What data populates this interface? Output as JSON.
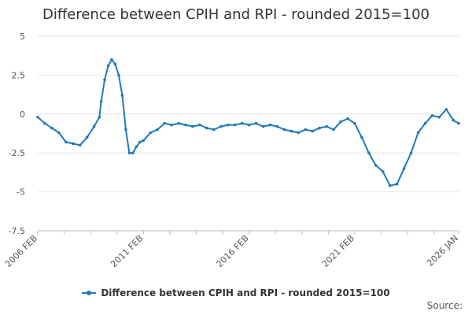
{
  "chart_data": {
    "type": "line",
    "title": "Difference between CPIH and RPI - rounded 2015=100",
    "xlabel": "",
    "ylabel": "",
    "ylim": [
      -7.5,
      5
    ],
    "y_ticks": [
      5,
      2.5,
      0,
      -2.5,
      -5,
      -7.5
    ],
    "y_tick_labels": [
      "5",
      "2.5",
      "0",
      "-2.5",
      "-5",
      "-7.5"
    ],
    "x_ticks": [
      "2006 FEB",
      "2011 FEB",
      "2016 FEB",
      "2021 FEB",
      "2026 JAN"
    ],
    "grid": true,
    "legend_position": "bottom-center",
    "series": [
      {
        "name": "Difference between CPIH and RPI - rounded 2015=100",
        "color": "#1f7bb8",
        "x": [
          "2006-02",
          "2006-06",
          "2006-10",
          "2007-02",
          "2007-06",
          "2007-10",
          "2008-02",
          "2008-06",
          "2008-10",
          "2009-01",
          "2009-02",
          "2009-04",
          "2009-06",
          "2009-08",
          "2009-10",
          "2009-12",
          "2010-02",
          "2010-04",
          "2010-06",
          "2010-08",
          "2010-10",
          "2010-12",
          "2011-02",
          "2011-06",
          "2011-10",
          "2012-02",
          "2012-06",
          "2012-10",
          "2013-02",
          "2013-06",
          "2013-10",
          "2014-02",
          "2014-06",
          "2014-10",
          "2015-02",
          "2015-06",
          "2015-10",
          "2016-02",
          "2016-06",
          "2016-10",
          "2017-02",
          "2017-06",
          "2017-10",
          "2018-02",
          "2018-06",
          "2018-10",
          "2019-02",
          "2019-06",
          "2019-10",
          "2020-02",
          "2020-06",
          "2020-10",
          "2021-02",
          "2021-06",
          "2021-10",
          "2022-02",
          "2022-06",
          "2022-10",
          "2023-02",
          "2023-06",
          "2023-10",
          "2024-02",
          "2024-06",
          "2024-10",
          "2025-02",
          "2025-06",
          "2025-10",
          "2026-01"
        ],
        "values": [
          -0.2,
          -0.6,
          -0.9,
          -1.2,
          -1.8,
          -1.9,
          -2.0,
          -1.5,
          -0.8,
          -0.2,
          0.8,
          2.2,
          3.1,
          3.5,
          3.2,
          2.5,
          1.2,
          -1.0,
          -2.5,
          -2.5,
          -2.1,
          -1.8,
          -1.7,
          -1.2,
          -1.0,
          -0.6,
          -0.7,
          -0.6,
          -0.7,
          -0.8,
          -0.7,
          -0.9,
          -1.0,
          -0.8,
          -0.7,
          -0.7,
          -0.6,
          -0.7,
          -0.6,
          -0.8,
          -0.7,
          -0.8,
          -1.0,
          -1.1,
          -1.2,
          -1.0,
          -1.1,
          -0.9,
          -0.8,
          -1.0,
          -0.5,
          -0.3,
          -0.6,
          -1.5,
          -2.5,
          -3.3,
          -3.7,
          -4.6,
          -4.5,
          -3.5,
          -2.5,
          -1.2,
          -0.6,
          -0.1,
          -0.2,
          0.3,
          -0.4,
          -0.6
        ]
      }
    ]
  },
  "legend": {
    "label": "Difference between CPIH and RPI - rounded 2015=100"
  },
  "source": {
    "label": "Source:"
  }
}
